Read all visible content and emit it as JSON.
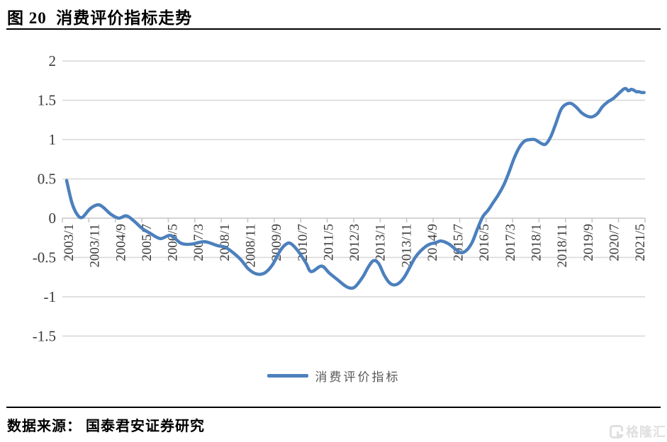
{
  "page": {
    "title": "图 20  消费评价指标走势",
    "source": "数据来源： 国泰君安证券研究",
    "watermark": "格隆汇"
  },
  "chart_data": {
    "type": "line",
    "title": "消费评价指标走势",
    "legend_position": "bottom",
    "grid": "horizontal",
    "line_color": "#4c80bd",
    "grid_color": "#d9d9d9",
    "axis_color": "#c6c6c6",
    "ylim": [
      -1.5,
      2
    ],
    "y_ticks": [
      2,
      1.5,
      1,
      0.5,
      0,
      -0.5,
      -1,
      -1.5
    ],
    "x_tick_labels": [
      "2003/1",
      "2003/11",
      "2004/9",
      "2005/7",
      "2006/5",
      "2007/3",
      "2008/1",
      "2008/11",
      "2009/9",
      "2010/7",
      "2011/5",
      "2012/3",
      "2013/1",
      "2013/11",
      "2014/9",
      "2015/7",
      "2016/5",
      "2017/3",
      "2018/1",
      "2018/11",
      "2019/9",
      "2020/7",
      "2021/5"
    ],
    "x_unit": "year/month",
    "series": [
      {
        "name": "消费评价指标",
        "point_format": [
          "month",
          "value"
        ],
        "points": [
          [
            "2003/1",
            0.48
          ],
          [
            "2003/3",
            0.2
          ],
          [
            "2003/5",
            0.05
          ],
          [
            "2003/7",
            0.01
          ],
          [
            "2003/10",
            0.12
          ],
          [
            "2004/1",
            0.17
          ],
          [
            "2004/3",
            0.14
          ],
          [
            "2004/6",
            0.05
          ],
          [
            "2004/9",
            0.0
          ],
          [
            "2004/12",
            0.03
          ],
          [
            "2005/3",
            -0.04
          ],
          [
            "2005/6",
            -0.13
          ],
          [
            "2005/9",
            -0.19
          ],
          [
            "2006/1",
            -0.26
          ],
          [
            "2006/5",
            -0.22
          ],
          [
            "2006/9",
            -0.32
          ],
          [
            "2007/1",
            -0.33
          ],
          [
            "2007/6",
            -0.3
          ],
          [
            "2007/11",
            -0.35
          ],
          [
            "2008/2",
            -0.37
          ],
          [
            "2008/5",
            -0.44
          ],
          [
            "2008/8",
            -0.53
          ],
          [
            "2008/11",
            -0.65
          ],
          [
            "2009/2",
            -0.71
          ],
          [
            "2009/5",
            -0.7
          ],
          [
            "2009/8",
            -0.6
          ],
          [
            "2009/11",
            -0.42
          ],
          [
            "2010/1",
            -0.34
          ],
          [
            "2010/3",
            -0.32
          ],
          [
            "2010/6",
            -0.42
          ],
          [
            "2010/9",
            -0.57
          ],
          [
            "2010/11",
            -0.68
          ],
          [
            "2011/3",
            -0.61
          ],
          [
            "2011/6",
            -0.7
          ],
          [
            "2011/9",
            -0.78
          ],
          [
            "2011/12",
            -0.86
          ],
          [
            "2012/2",
            -0.89
          ],
          [
            "2012/4",
            -0.87
          ],
          [
            "2012/7",
            -0.74
          ],
          [
            "2012/9",
            -0.62
          ],
          [
            "2012/11",
            -0.54
          ],
          [
            "2013/1",
            -0.58
          ],
          [
            "2013/3",
            -0.72
          ],
          [
            "2013/5",
            -0.82
          ],
          [
            "2013/7",
            -0.85
          ],
          [
            "2013/9",
            -0.82
          ],
          [
            "2013/11",
            -0.74
          ],
          [
            "2014/1",
            -0.62
          ],
          [
            "2014/3",
            -0.5
          ],
          [
            "2014/5",
            -0.42
          ],
          [
            "2014/8",
            -0.34
          ],
          [
            "2014/11",
            -0.31
          ],
          [
            "2015/1",
            -0.29
          ],
          [
            "2015/4",
            -0.33
          ],
          [
            "2015/7",
            -0.41
          ],
          [
            "2015/9",
            -0.44
          ],
          [
            "2015/11",
            -0.4
          ],
          [
            "2016/1",
            -0.3
          ],
          [
            "2016/3",
            -0.13
          ],
          [
            "2016/5",
            0.02
          ],
          [
            "2016/7",
            0.1
          ],
          [
            "2016/9",
            0.2
          ],
          [
            "2016/11",
            0.3
          ],
          [
            "2017/1",
            0.42
          ],
          [
            "2017/3",
            0.58
          ],
          [
            "2017/5",
            0.76
          ],
          [
            "2017/7",
            0.9
          ],
          [
            "2017/9",
            0.98
          ],
          [
            "2017/11",
            1.0
          ],
          [
            "2018/1",
            1.0
          ],
          [
            "2018/3",
            0.96
          ],
          [
            "2018/5",
            0.94
          ],
          [
            "2018/7",
            1.03
          ],
          [
            "2018/9",
            1.2
          ],
          [
            "2018/11",
            1.38
          ],
          [
            "2019/1",
            1.45
          ],
          [
            "2019/3",
            1.46
          ],
          [
            "2019/5",
            1.41
          ],
          [
            "2019/7",
            1.34
          ],
          [
            "2019/9",
            1.3
          ],
          [
            "2019/11",
            1.29
          ],
          [
            "2020/1",
            1.33
          ],
          [
            "2020/3",
            1.42
          ],
          [
            "2020/5",
            1.48
          ],
          [
            "2020/7",
            1.52
          ],
          [
            "2020/9",
            1.58
          ],
          [
            "2020/11",
            1.64
          ],
          [
            "2020/12",
            1.65
          ],
          [
            "2021/1",
            1.62
          ],
          [
            "2021/2",
            1.64
          ],
          [
            "2021/3",
            1.63
          ],
          [
            "2021/4",
            1.61
          ],
          [
            "2021/5",
            1.61
          ],
          [
            "2021/6",
            1.6
          ],
          [
            "2021/7",
            1.6
          ]
        ]
      }
    ]
  }
}
